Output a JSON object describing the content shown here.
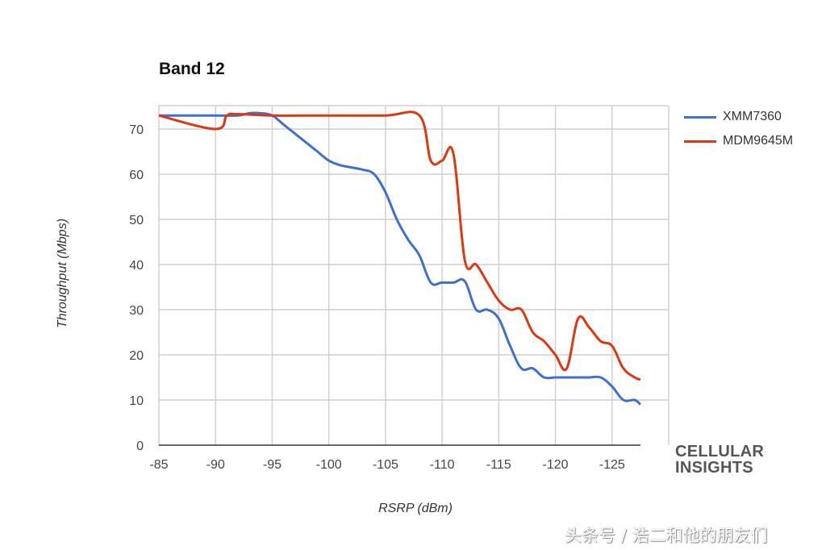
{
  "chart_data": {
    "type": "line",
    "title": "Band 12",
    "xlabel": "RSRP (dBm)",
    "ylabel": "Throughput (Mbps)",
    "xlim": [
      -85,
      -130
    ],
    "ylim": [
      0,
      75
    ],
    "x_ticks": [
      -85,
      -90,
      -95,
      -100,
      -105,
      -110,
      -115,
      -120,
      -125
    ],
    "y_ticks": [
      0,
      10,
      20,
      30,
      40,
      50,
      60,
      70
    ],
    "grid": true,
    "legend_position": "right",
    "series": [
      {
        "name": "XMM7360",
        "color": "#3f6fd1",
        "x": [
          -85,
          -90,
          -92,
          -93,
          -94,
          -95,
          -96,
          -97,
          -98,
          -99,
          -100,
          -101,
          -102,
          -103,
          -104,
          -105,
          -106,
          -107,
          -108,
          -109,
          -110,
          -111,
          -112,
          -113,
          -114,
          -115,
          -116,
          -117,
          -118,
          -119,
          -120,
          -121,
          -122,
          -123,
          -124,
          -125,
          -126,
          -127,
          -127.5
        ],
        "values": [
          73,
          73,
          73,
          73.5,
          73.5,
          73,
          71,
          69,
          67,
          65,
          63,
          62,
          61.5,
          61,
          60,
          56,
          50,
          45.5,
          42,
          36,
          36,
          36,
          36.3,
          30,
          30,
          28,
          22,
          17,
          17,
          15,
          15,
          15,
          15,
          15,
          15,
          13,
          10,
          10,
          9
        ]
      },
      {
        "name": "MDM9645M",
        "color": "#dc3912",
        "x": [
          -85,
          -90,
          -91,
          -92,
          -95,
          -100,
          -105,
          -108,
          -109,
          -110,
          -111,
          -112,
          -113,
          -114,
          -115,
          -116,
          -117,
          -118,
          -119,
          -120,
          -121,
          -122,
          -123,
          -124,
          -125,
          -126,
          -127,
          -127.5
        ],
        "values": [
          73,
          70,
          73,
          73.3,
          73,
          73,
          73,
          73,
          63,
          63,
          64.5,
          41,
          40,
          36,
          32,
          30,
          30,
          25,
          23,
          20,
          17,
          28,
          26,
          23,
          22,
          17,
          15,
          14.5
        ]
      }
    ]
  },
  "labels": {
    "title": "Band 12",
    "xlabel": "RSRP (dBm)",
    "ylabel": "Throughput (Mbps)"
  },
  "legend": [
    {
      "name": "XMM7360",
      "color": "#3f6fd1"
    },
    {
      "name": "MDM9645M",
      "color": "#dc3912"
    }
  ],
  "brand": {
    "line1": "CELLULAR",
    "line2": "INSIGHTS"
  },
  "watermark": "头条号 / 浩二和他的朋友们"
}
